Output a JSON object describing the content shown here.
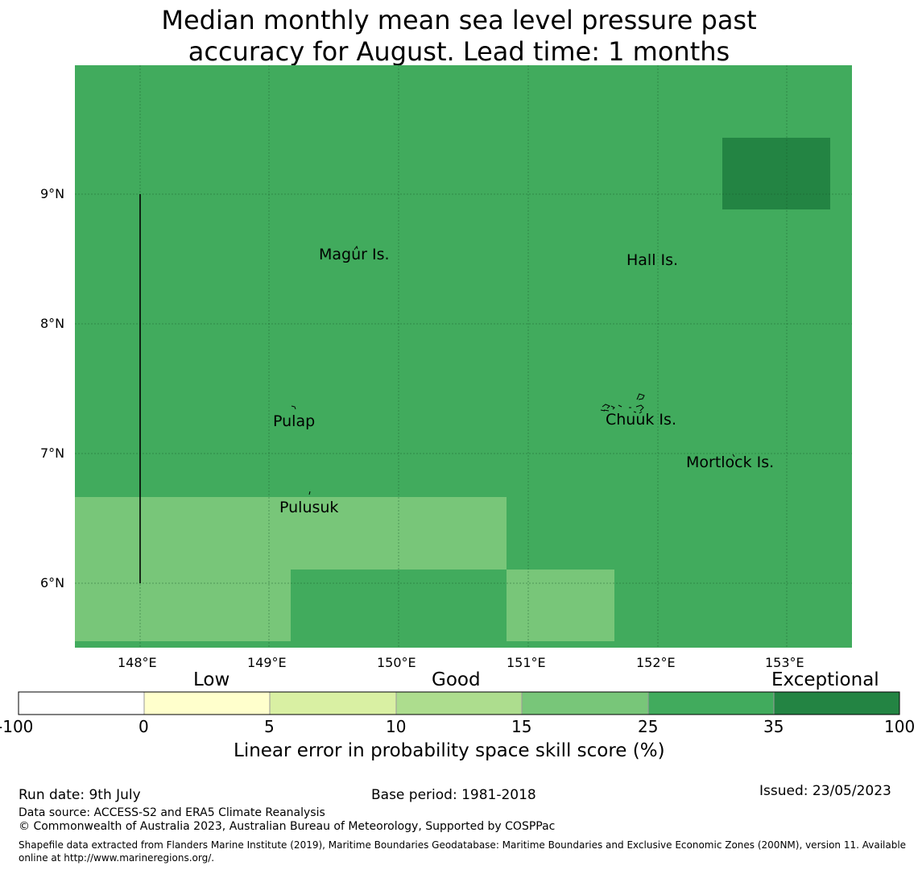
{
  "title": {
    "line1": "Median monthly mean sea level pressure past",
    "line2": "accuracy for August. Lead time: 1 months"
  },
  "map": {
    "lat_ticks": [
      "9°N",
      "8°N",
      "7°N",
      "6°N"
    ],
    "lon_ticks": [
      "148°E",
      "149°E",
      "150°E",
      "151°E",
      "152°E",
      "153°E"
    ],
    "lat_range": [
      5.5,
      10.0
    ],
    "lon_range": [
      147.5,
      153.5
    ],
    "background_class": "25 to 35",
    "places": [
      "Magur Is.",
      "Hall Is.",
      "Pulap",
      "Chuuk Is.",
      "Mortlock Is.",
      "Pulusuk"
    ],
    "colors": {
      "good_25_35": "#41ab5d",
      "good_15_25": "#78c679",
      "exceptional_35_100": "#238443"
    }
  },
  "colorbar": {
    "categories": [
      "Low",
      "Good",
      "Exceptional"
    ],
    "ticks": [
      "-100",
      "0",
      "5",
      "10",
      "15",
      "25",
      "35",
      "100"
    ],
    "colors": [
      "#ffffff",
      "#ffffcc",
      "#d9f0a3",
      "#addd8e",
      "#78c679",
      "#41ab5d",
      "#238443"
    ],
    "label": "Linear error in probability space skill score (%)"
  },
  "footer": {
    "run_date": "Run date: 9th July",
    "base_period": "Base period: 1981-2018",
    "issued": "Issued: 23/05/2023",
    "data_source": "Data source: ACCESS-S2 and ERA5 Climate Reanalysis",
    "copyright": "© Commonwealth of Australia 2023, Australian Bureau of Meteorology, Supported by COSPPac",
    "shapefile_line1": "Shapefile data extracted from Flanders Marine Institute (2019), Maritime Boundaries Geodatabase: Maritime Boundaries and Exclusive Economic Zones (200NM), version 11. Available",
    "shapefile_line2": "online at http://www.marineregions.org/."
  }
}
